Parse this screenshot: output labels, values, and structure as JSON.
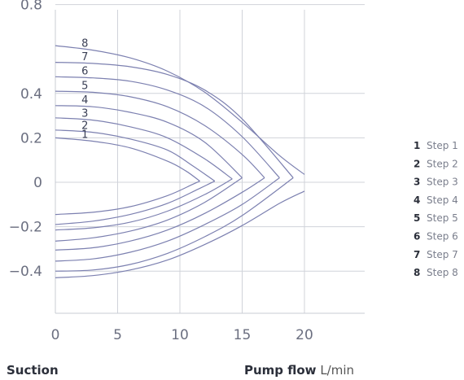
{
  "chart_data": {
    "type": "line",
    "x_ticks": [
      "0",
      "5",
      "10",
      "15",
      "20"
    ],
    "y_ticks": [
      "0.8",
      "0.4",
      "0.2",
      "0",
      "−0.2",
      "−0.4"
    ],
    "y_tick_values": [
      0.8,
      0.4,
      0.2,
      0,
      -0.2,
      -0.4
    ],
    "xlim": [
      0,
      25
    ],
    "ylim": [
      -0.6,
      1.0
    ],
    "grid": true,
    "line_color": "#7c80b0",
    "grid_color": "#d0d3da",
    "series": [
      {
        "name": "Step 1",
        "label": "1",
        "upper": [
          [
            0,
            0.2
          ],
          [
            3,
            0.185
          ],
          [
            6,
            0.155
          ],
          [
            9,
            0.095
          ],
          [
            10.5,
            0.05
          ],
          [
            11.6,
            0.005
          ]
        ],
        "lower": [
          [
            0,
            -0.145
          ],
          [
            3,
            -0.135
          ],
          [
            6,
            -0.11
          ],
          [
            9,
            -0.06
          ],
          [
            11,
            -0.01
          ],
          [
            11.6,
            0.005
          ]
        ]
      },
      {
        "name": "Step 2",
        "label": "2",
        "upper": [
          [
            0,
            0.235
          ],
          [
            3,
            0.225
          ],
          [
            6,
            0.195
          ],
          [
            9,
            0.145
          ],
          [
            11,
            0.075
          ],
          [
            12.8,
            0.005
          ]
        ],
        "lower": [
          [
            0,
            -0.19
          ],
          [
            3,
            -0.175
          ],
          [
            6,
            -0.145
          ],
          [
            9,
            -0.095
          ],
          [
            11.5,
            -0.03
          ],
          [
            12.8,
            0.005
          ]
        ]
      },
      {
        "name": "Step 3",
        "label": "3",
        "upper": [
          [
            0,
            0.29
          ],
          [
            3,
            0.28
          ],
          [
            6,
            0.25
          ],
          [
            9,
            0.2
          ],
          [
            12,
            0.105
          ],
          [
            14.2,
            0.015
          ]
        ],
        "lower": [
          [
            0,
            -0.215
          ],
          [
            3,
            -0.205
          ],
          [
            6,
            -0.18
          ],
          [
            9,
            -0.13
          ],
          [
            12,
            -0.055
          ],
          [
            14.2,
            0.015
          ]
        ]
      },
      {
        "name": "Step 4",
        "label": "4",
        "upper": [
          [
            0,
            0.345
          ],
          [
            3,
            0.34
          ],
          [
            6,
            0.315
          ],
          [
            9,
            0.27
          ],
          [
            12,
            0.18
          ],
          [
            15,
            0.02
          ]
        ],
        "lower": [
          [
            0,
            -0.265
          ],
          [
            3,
            -0.25
          ],
          [
            6,
            -0.22
          ],
          [
            9,
            -0.17
          ],
          [
            12,
            -0.09
          ],
          [
            15,
            0.02
          ]
        ]
      },
      {
        "name": "Step 5",
        "label": "5",
        "upper": [
          [
            0,
            0.41
          ],
          [
            3,
            0.405
          ],
          [
            6,
            0.385
          ],
          [
            9,
            0.34
          ],
          [
            12,
            0.255
          ],
          [
            15,
            0.125
          ],
          [
            16.8,
            0.02
          ]
        ],
        "lower": [
          [
            0,
            -0.305
          ],
          [
            3,
            -0.295
          ],
          [
            6,
            -0.265
          ],
          [
            9,
            -0.215
          ],
          [
            12,
            -0.14
          ],
          [
            15,
            -0.045
          ],
          [
            16.8,
            0.02
          ]
        ]
      },
      {
        "name": "Step 6",
        "label": "6",
        "upper": [
          [
            0,
            0.475
          ],
          [
            3,
            0.47
          ],
          [
            6,
            0.455
          ],
          [
            9,
            0.415
          ],
          [
            12,
            0.34
          ],
          [
            15,
            0.205
          ],
          [
            18,
            0.02
          ]
        ],
        "lower": [
          [
            0,
            -0.355
          ],
          [
            3,
            -0.345
          ],
          [
            6,
            -0.315
          ],
          [
            9,
            -0.265
          ],
          [
            12,
            -0.19
          ],
          [
            15,
            -0.1
          ],
          [
            18,
            0.02
          ]
        ]
      },
      {
        "name": "Step 7",
        "label": "7",
        "upper": [
          [
            0,
            0.54
          ],
          [
            3,
            0.535
          ],
          [
            6,
            0.52
          ],
          [
            9,
            0.485
          ],
          [
            12,
            0.415
          ],
          [
            15,
            0.285
          ],
          [
            19.1,
            0.02
          ]
        ],
        "lower": [
          [
            0,
            -0.4
          ],
          [
            3,
            -0.395
          ],
          [
            6,
            -0.37
          ],
          [
            9,
            -0.32
          ],
          [
            12,
            -0.245
          ],
          [
            15,
            -0.15
          ],
          [
            19.1,
            0.02
          ]
        ]
      },
      {
        "name": "Step 8",
        "label": "8",
        "upper": [
          [
            0,
            0.615
          ],
          [
            3,
            0.595
          ],
          [
            6,
            0.56
          ],
          [
            9,
            0.5
          ],
          [
            12,
            0.405
          ],
          [
            15,
            0.27
          ],
          [
            18,
            0.12
          ],
          [
            20,
            0.035
          ]
        ],
        "lower": [
          [
            0,
            -0.43
          ],
          [
            3,
            -0.42
          ],
          [
            6,
            -0.395
          ],
          [
            9,
            -0.35
          ],
          [
            12,
            -0.28
          ],
          [
            15,
            -0.195
          ],
          [
            18,
            -0.095
          ],
          [
            20,
            -0.04
          ]
        ]
      }
    ],
    "legend": {
      "placement": "right",
      "items": [
        {
          "num": "1",
          "label": "Step 1"
        },
        {
          "num": "2",
          "label": "Step 2"
        },
        {
          "num": "3",
          "label": "Step 3"
        },
        {
          "num": "4",
          "label": "Step 4"
        },
        {
          "num": "5",
          "label": "Step 5"
        },
        {
          "num": "6",
          "label": "Step 6"
        },
        {
          "num": "7",
          "label": "Step 7"
        },
        {
          "num": "8",
          "label": "Step 8"
        }
      ]
    },
    "ylabel": "Suction",
    "xlabel": "Pump flow",
    "xunit": "L/min"
  }
}
